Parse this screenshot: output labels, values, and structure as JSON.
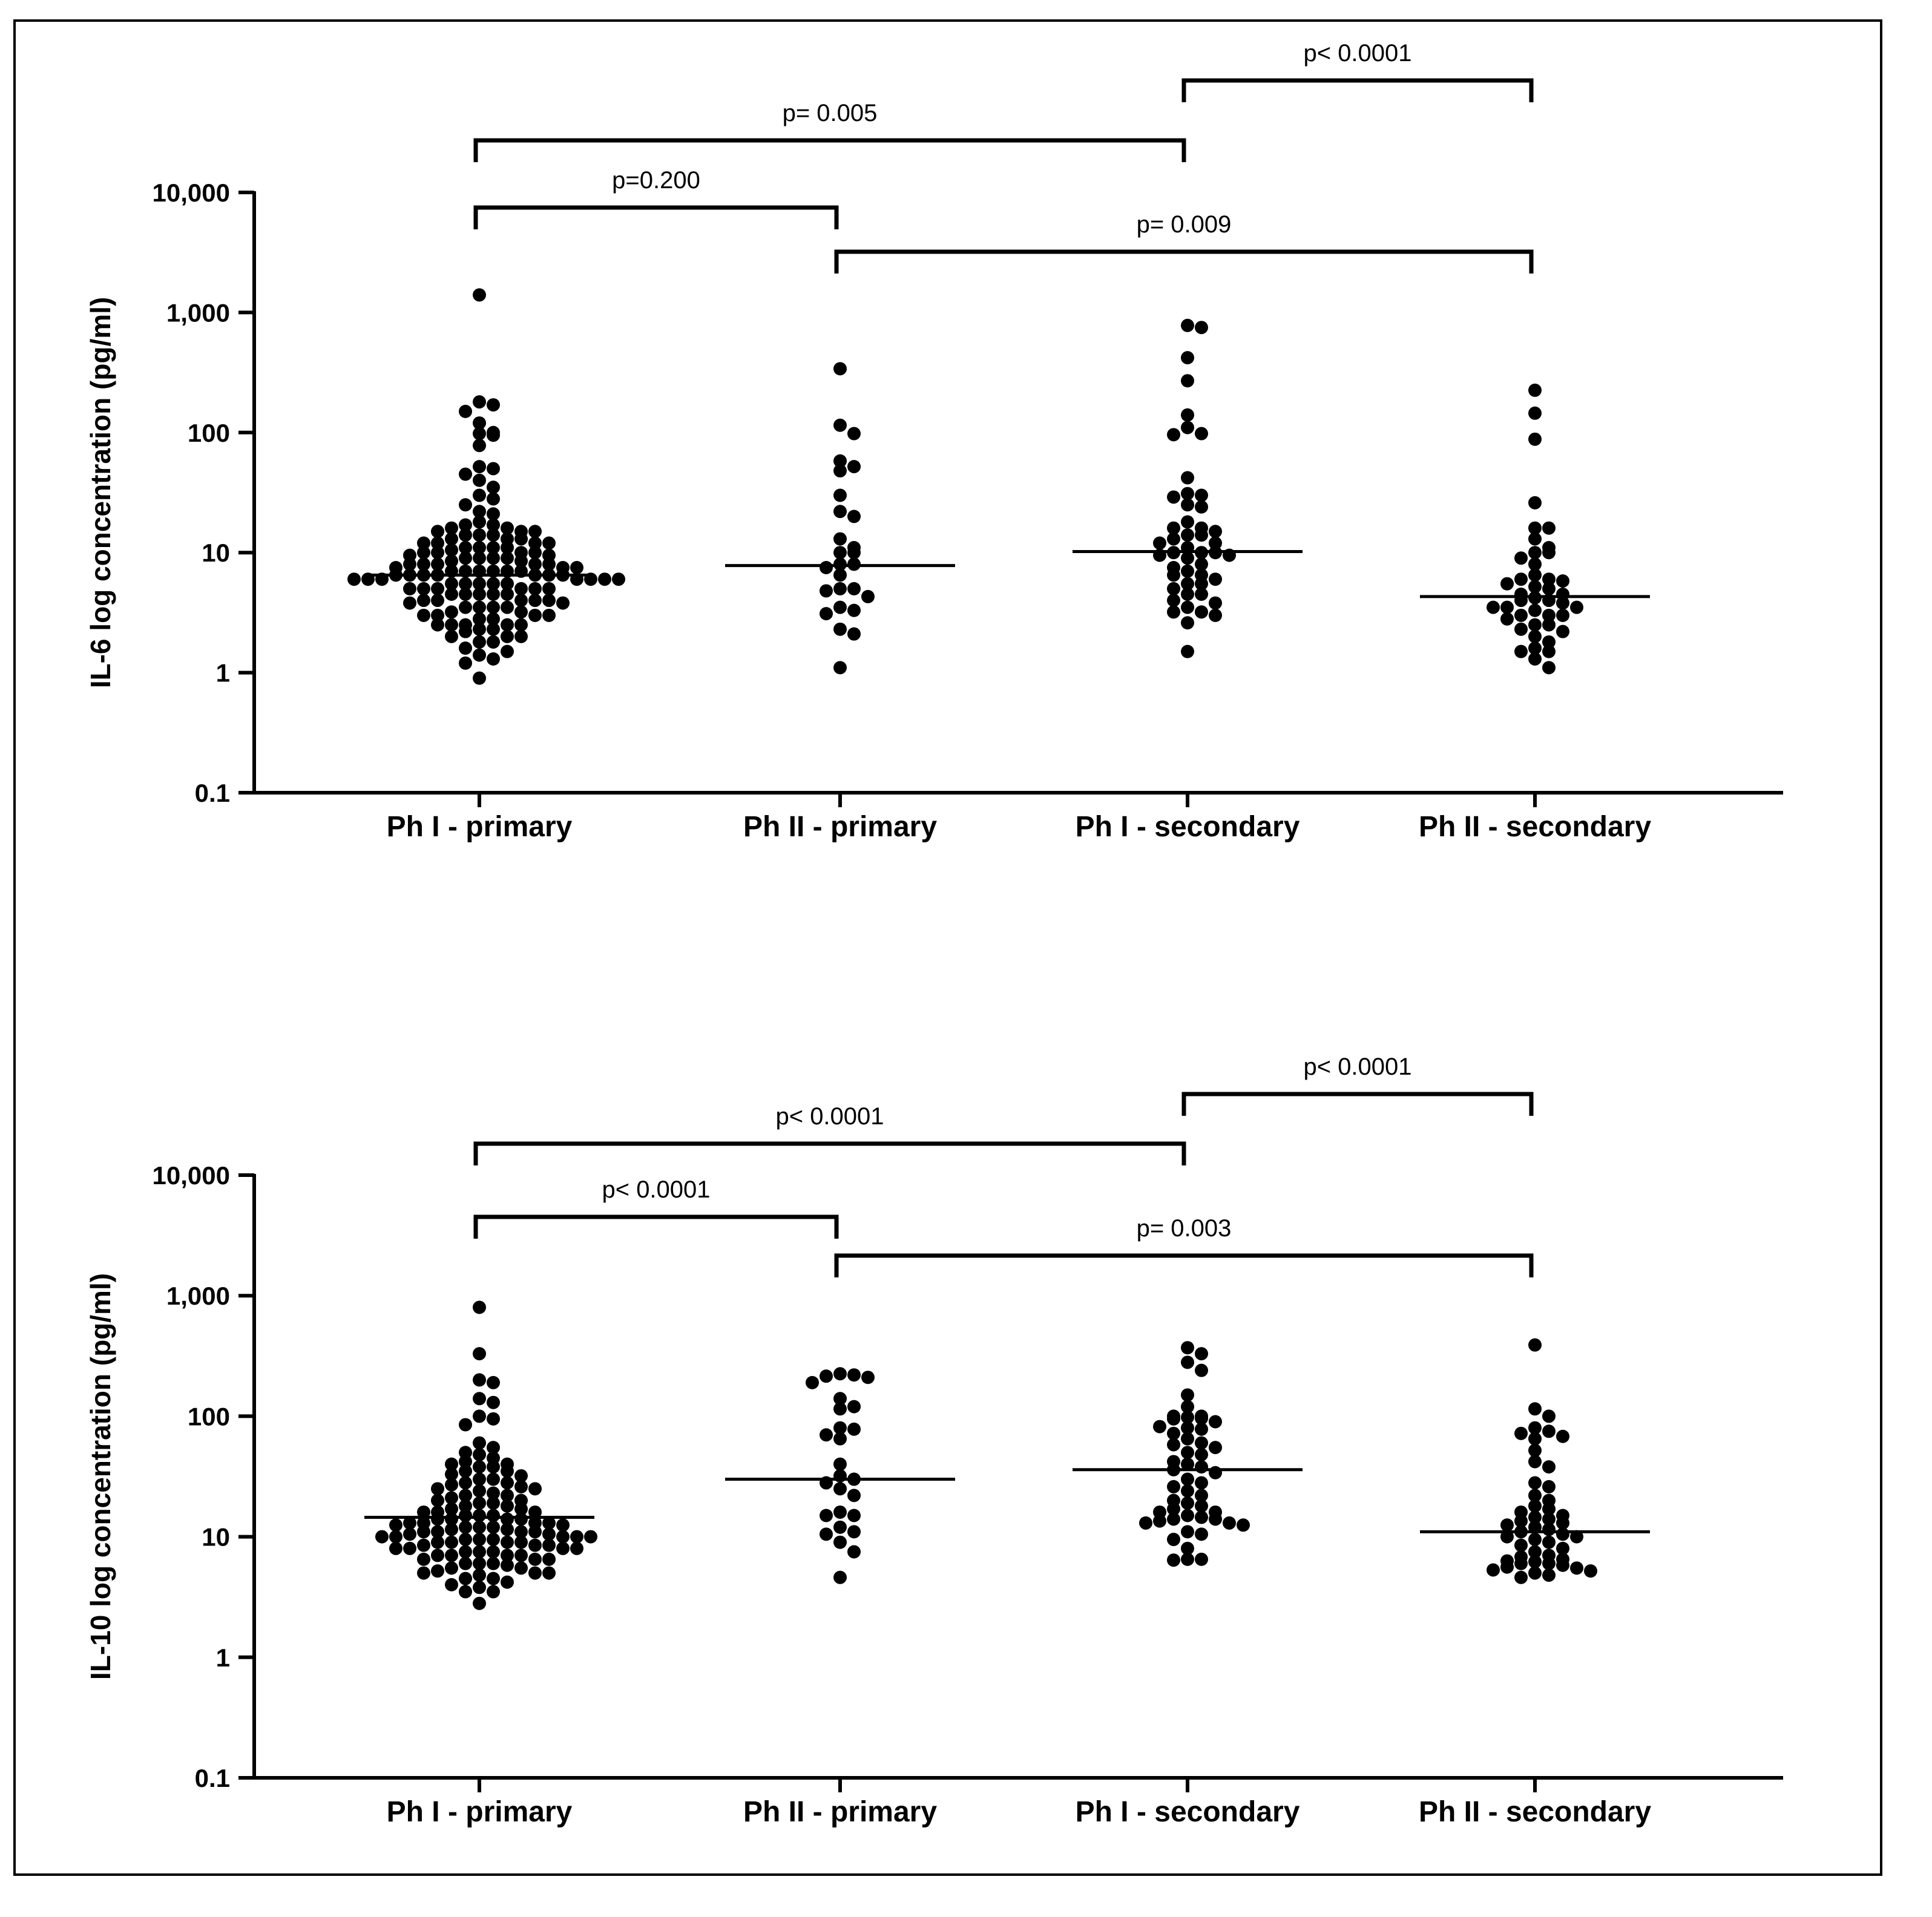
{
  "colors": {
    "ink": "#000000",
    "background": "#ffffff"
  },
  "chart_data": [
    {
      "type": "scatter",
      "subtype": "dot-plot-with-median",
      "ylabel": "IL-6 log concentration (pg/ml)",
      "yscale": "log",
      "ylim": [
        0.1,
        10000
      ],
      "yticks": [
        0.1,
        1,
        10,
        100,
        1000,
        10000
      ],
      "ytick_labels": [
        "0.1",
        "1",
        "10",
        "100",
        "1,000",
        "10,000"
      ],
      "categories": [
        "Ph I - primary",
        "Ph II - primary",
        "Ph I - secondary",
        "Ph II - secondary"
      ],
      "medians": [
        6.5,
        7.8,
        10.2,
        4.3
      ],
      "series": [
        {
          "name": "Ph I - primary",
          "values": [
            1400,
            180,
            170,
            150,
            120,
            100,
            98,
            95,
            78,
            52,
            50,
            45,
            40,
            35,
            30,
            28,
            25,
            22,
            21,
            18,
            17,
            17,
            16,
            16,
            15,
            15,
            15,
            14,
            14,
            14,
            13,
            13,
            13,
            12,
            12,
            12,
            12,
            11,
            11,
            11,
            11,
            10.5,
            10,
            10,
            10,
            10,
            9.5,
            9.5,
            9,
            9,
            9,
            9,
            8.5,
            8.5,
            8,
            8,
            8,
            8,
            8,
            7.5,
            7.5,
            7.5,
            7,
            7,
            7,
            7,
            7,
            7,
            6.5,
            6.5,
            6.5,
            6.5,
            6.5,
            6.5,
            6.5,
            6,
            6,
            6,
            6,
            6,
            6,
            6,
            5.5,
            5.5,
            5.5,
            5.5,
            5.5,
            5,
            5,
            5,
            5,
            5,
            5,
            4.5,
            4.5,
            4.5,
            4.5,
            4.5,
            4,
            4,
            4,
            4,
            4,
            3.8,
            3.8,
            3.5,
            3.5,
            3.5,
            3.5,
            3.2,
            3.2,
            3,
            3,
            3,
            3,
            2.8,
            2.8,
            2.5,
            2.5,
            2.5,
            2.5,
            2.5,
            2.3,
            2.3,
            2.2,
            2,
            2,
            2,
            1.8,
            1.8,
            1.6,
            1.5,
            1.4,
            1.3,
            1.2,
            0.9
          ]
        },
        {
          "name": "Ph II - primary",
          "values": [
            340,
            115,
            98,
            58,
            52,
            48,
            30,
            22,
            20,
            13,
            11,
            10,
            10,
            8,
            8,
            7.5,
            6.5,
            5,
            5,
            4.8,
            4.3,
            3.5,
            3.3,
            3.1,
            2.3,
            2.1,
            1.1
          ]
        },
        {
          "name": "Ph I - secondary",
          "values": [
            780,
            750,
            420,
            270,
            140,
            110,
            98,
            96,
            42,
            31,
            30,
            29,
            25,
            24,
            18,
            16,
            16,
            15,
            14,
            14,
            13,
            12,
            12,
            11,
            10,
            10,
            10,
            9.5,
            9.5,
            9,
            8,
            7.5,
            7,
            6.5,
            6.5,
            6,
            5.5,
            5.5,
            5,
            4.5,
            4.5,
            4,
            3.8,
            3.5,
            3.2,
            3.2,
            3,
            2.6,
            1.5
          ]
        },
        {
          "name": "Ph II - secondary",
          "values": [
            225,
            145,
            88,
            26,
            16,
            16,
            13,
            11,
            10,
            10,
            9,
            8,
            6.5,
            6,
            6,
            5.8,
            5.5,
            5.2,
            5,
            4.5,
            4.5,
            4.2,
            4,
            4,
            3.8,
            3.5,
            3.5,
            3.5,
            3.3,
            3,
            3,
            3,
            2.8,
            2.5,
            2.5,
            2.3,
            2.2,
            2,
            1.8,
            1.6,
            1.5,
            1.5,
            1.3,
            1.1
          ]
        }
      ],
      "comparisons": [
        {
          "from": 0,
          "to": 2,
          "label": "p= 0.005",
          "level": 2,
          "side": "up"
        },
        {
          "from": 2,
          "to": 3,
          "label": "p< 0.0001",
          "level": 3,
          "side": "up"
        },
        {
          "from": 0,
          "to": 1,
          "label": "p=0.200",
          "level": 1,
          "side": "up"
        },
        {
          "from": 1,
          "to": 3,
          "label": "p= 0.009",
          "level": 0,
          "side": "down"
        }
      ]
    },
    {
      "type": "scatter",
      "subtype": "dot-plot-with-median",
      "ylabel": "IL-10 log concentration (pg/ml)",
      "yscale": "log",
      "ylim": [
        0.1,
        10000
      ],
      "yticks": [
        0.1,
        1,
        10,
        100,
        1000,
        10000
      ],
      "ytick_labels": [
        "0.1",
        "1",
        "10",
        "100",
        "1,000",
        "10,000"
      ],
      "categories": [
        "Ph I - primary",
        "Ph II - primary",
        "Ph I - secondary",
        "Ph II - secondary"
      ],
      "medians": [
        14.5,
        30,
        36,
        11
      ],
      "series": [
        {
          "name": "Ph I - primary",
          "values": [
            800,
            330,
            200,
            190,
            140,
            130,
            100,
            95,
            85,
            60,
            55,
            50,
            48,
            45,
            42,
            40,
            40,
            38,
            38,
            35,
            35,
            33,
            32,
            30,
            30,
            28,
            28,
            27,
            26,
            25,
            25,
            24,
            23,
            22,
            22,
            21,
            20,
            20,
            19,
            19,
            18,
            18,
            17,
            17,
            16,
            16,
            16,
            15,
            15,
            15,
            14,
            14,
            14,
            14,
            13,
            13,
            13,
            13,
            12.5,
            12.5,
            12,
            12,
            12,
            11.5,
            11.5,
            11,
            11,
            11,
            11,
            10.5,
            10.5,
            10,
            10,
            10,
            10,
            10,
            9.5,
            9.5,
            9.5,
            9,
            9,
            9,
            9,
            8.5,
            8.5,
            8.5,
            8,
            8,
            8,
            8,
            7.5,
            7.5,
            7.5,
            7,
            7,
            7,
            7,
            6.5,
            6.5,
            6.5,
            6,
            6,
            6,
            5.8,
            5.5,
            5.5,
            5.2,
            5,
            5,
            5,
            4.8,
            4.5,
            4.5,
            4.2,
            4,
            3.8,
            3.5,
            3.5,
            2.8
          ]
        },
        {
          "name": "Ph II - primary",
          "values": [
            225,
            220,
            215,
            210,
            190,
            140,
            120,
            115,
            80,
            78,
            70,
            65,
            40,
            32,
            30,
            28,
            25,
            22,
            16,
            15,
            15,
            12,
            11,
            10.5,
            9,
            7.5,
            4.6
          ]
        },
        {
          "name": "Ph I - secondary",
          "values": [
            370,
            330,
            280,
            240,
            150,
            120,
            100,
            100,
            98,
            96,
            95,
            90,
            82,
            80,
            78,
            72,
            65,
            60,
            58,
            55,
            50,
            48,
            42,
            40,
            38,
            36,
            34,
            30,
            28,
            26,
            24,
            22,
            20,
            19,
            18,
            17,
            16,
            16,
            15,
            14.5,
            14,
            14,
            13.5,
            13,
            13,
            12.5,
            11,
            10.5,
            9.5,
            8,
            6.5,
            6.5,
            6.4
          ]
        },
        {
          "name": "Ph II - secondary",
          "values": [
            390,
            115,
            100,
            80,
            75,
            72,
            68,
            65,
            52,
            42,
            38,
            28,
            26,
            22,
            20,
            18,
            17,
            16,
            15,
            14.5,
            14,
            13.5,
            13,
            12.5,
            12,
            11.5,
            11,
            10.5,
            10,
            10,
            9.5,
            9,
            8.5,
            8,
            7.5,
            7,
            6.8,
            6.5,
            6.3,
            6.2,
            6,
            6,
            5.8,
            5.6,
            5.5,
            5.3,
            5.2,
            5,
            4.8,
            4.6
          ]
        }
      ],
      "comparisons": [
        {
          "from": 0,
          "to": 2,
          "label": "p< 0.0001",
          "level": 2,
          "side": "up"
        },
        {
          "from": 2,
          "to": 3,
          "label": "p< 0.0001",
          "level": 3,
          "side": "up"
        },
        {
          "from": 0,
          "to": 1,
          "label": "p< 0.0001",
          "level": 1,
          "side": "up"
        },
        {
          "from": 1,
          "to": 3,
          "label": "p= 0.003",
          "level": 0,
          "side": "down"
        }
      ]
    }
  ]
}
